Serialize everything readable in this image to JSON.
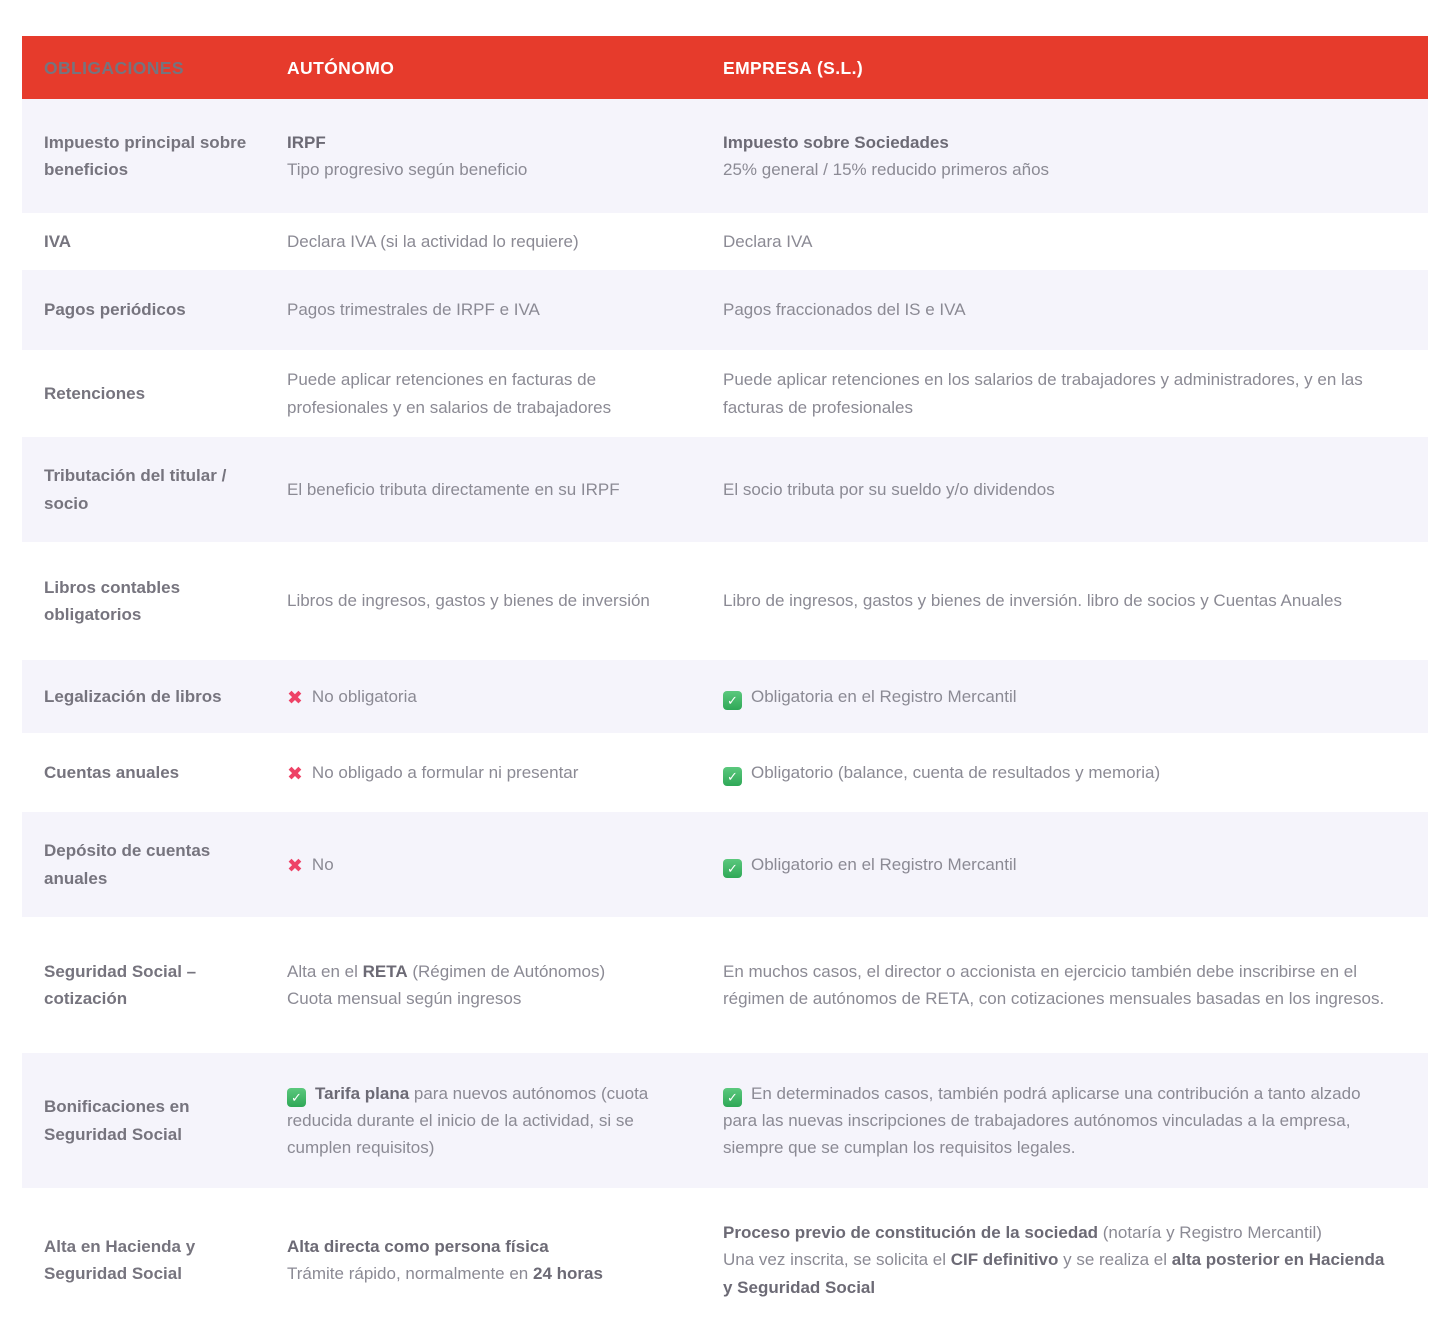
{
  "theme": {
    "accent": "#e63b2c",
    "row_alt": "#f5f4fb",
    "text": "#8b8a94",
    "label": "#76747e",
    "strong": "#6c6a75",
    "x": "#ee4266",
    "check_top": "#5bc87d",
    "check_bottom": "#2fa857"
  },
  "icons": {
    "x": "✖",
    "check": "✓"
  },
  "table": {
    "headers": [
      "OBLIGACIONES",
      "AUTÓNOMO",
      "EMPRESA (S.L.)"
    ],
    "rows": [
      {
        "label": "Impuesto principal sobre beneficios",
        "a": [
          {
            "t": "IRPF",
            "b": true
          },
          {
            "t": "\nTipo progresivo según beneficio"
          }
        ],
        "e": [
          {
            "t": "Impuesto sobre Sociedades",
            "b": true
          },
          {
            "t": "\n25% general / 15% reducido primeros años"
          }
        ]
      },
      {
        "label": "IVA",
        "a": [
          {
            "t": "Declara IVA (si la actividad lo requiere)"
          }
        ],
        "e": [
          {
            "t": "Declara IVA"
          }
        ]
      },
      {
        "label": "Pagos periódicos",
        "a": [
          {
            "t": "Pagos trimestrales de IRPF e IVA"
          }
        ],
        "e": [
          {
            "t": "Pagos fraccionados del IS e IVA"
          }
        ]
      },
      {
        "label": "Retenciones",
        "a": [
          {
            "t": "Puede aplicar retenciones en facturas de profesionales y en salarios de trabajadores"
          }
        ],
        "e": [
          {
            "t": "Puede aplicar retenciones en los salarios de trabajadores y administradores, y en las facturas de profesionales"
          }
        ]
      },
      {
        "label": "Tributación del titular / socio",
        "a": [
          {
            "t": "El beneficio tributa directamente en su IRPF"
          }
        ],
        "e": [
          {
            "t": "El socio tributa por su sueldo y/o dividendos"
          }
        ]
      },
      {
        "label": "Libros contables obligatorios",
        "a": [
          {
            "t": "Libros de ingresos, gastos y bienes de inversión"
          }
        ],
        "e": [
          {
            "t": "Libro de ingresos, gastos y bienes de inversión. libro de socios y Cuentas Anuales"
          }
        ]
      },
      {
        "label": "Legalización de libros",
        "a": [
          {
            "ic": "x"
          },
          {
            "t": "No obligatoria"
          }
        ],
        "e": [
          {
            "ic": "check"
          },
          {
            "t": "Obligatoria en el Registro Mercantil"
          }
        ]
      },
      {
        "label": "Cuentas anuales",
        "a": [
          {
            "ic": "x"
          },
          {
            "t": "No obligado a formular ni presentar"
          }
        ],
        "e": [
          {
            "ic": "check"
          },
          {
            "t": "Obligatorio (balance, cuenta de resultados y memoria)"
          }
        ]
      },
      {
        "label": "Depósito de cuentas anuales",
        "a": [
          {
            "ic": "x"
          },
          {
            "t": "No"
          }
        ],
        "e": [
          {
            "ic": "check"
          },
          {
            "t": "Obligatorio en el Registro Mercantil"
          }
        ]
      },
      {
        "label": "Seguridad Social – cotización",
        "a": [
          {
            "t": "Alta en el "
          },
          {
            "t": "RETA",
            "b": true
          },
          {
            "t": " (Régimen de Autónomos)\nCuota mensual según ingresos"
          }
        ],
        "e": [
          {
            "t": "En muchos casos, el director o accionista en ejercicio también debe inscribirse en el régimen de autónomos de RETA, con cotizaciones mensuales basadas en los ingresos."
          }
        ]
      },
      {
        "label": "Bonificaciones en Seguridad Social",
        "a": [
          {
            "ic": "check"
          },
          {
            "t": "Tarifa plana",
            "b": true
          },
          {
            "t": " para nuevos autónomos (cuota reducida durante el inicio de la actividad, si se cumplen requisitos)"
          }
        ],
        "e": [
          {
            "ic": "check"
          },
          {
            "t": "En determinados casos, también podrá aplicarse una contribución a tanto alzado para las nuevas inscripciones de trabajadores autónomos vinculadas a la empresa, siempre que se cumplan los requisitos legales."
          }
        ]
      },
      {
        "label": "Alta en Hacienda y Seguridad Social",
        "a": [
          {
            "t": "Alta directa como persona física",
            "b": true
          },
          {
            "t": "\nTrámite rápido, normalmente en "
          },
          {
            "t": "24 horas",
            "b": true
          }
        ],
        "e": [
          {
            "t": "Proceso previo de constitución de la sociedad",
            "b": true
          },
          {
            "t": " (notaría y Registro Mercantil)\nUna vez inscrita, se solicita el "
          },
          {
            "t": "CIF definitivo",
            "b": true
          },
          {
            "t": " y se realiza el "
          },
          {
            "t": "alta posterior en Hacienda y Seguridad Social",
            "b": true
          }
        ]
      }
    ]
  }
}
